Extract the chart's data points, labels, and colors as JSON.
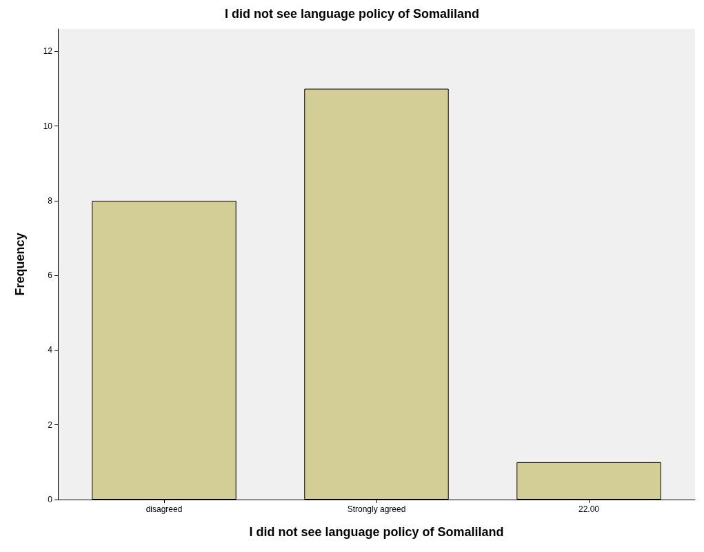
{
  "chart_data": {
    "type": "bar",
    "title": "I did not see language policy of Somaliland",
    "xlabel": "I did not see language policy of Somaliland",
    "ylabel": "Frequency",
    "categories": [
      "disagreed",
      "Strongly agreed",
      "22.00"
    ],
    "values": [
      8,
      11,
      1
    ],
    "color": "#d3cd96",
    "ylim": [
      0,
      12.6
    ],
    "yticks": [
      0,
      2,
      4,
      6,
      8,
      10,
      12
    ],
    "grid": false
  }
}
